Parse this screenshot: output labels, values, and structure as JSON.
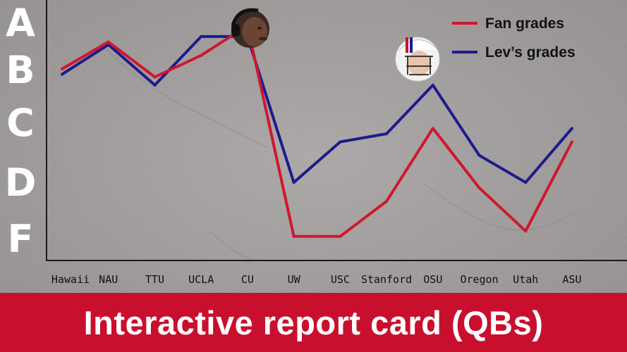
{
  "banner": {
    "title": "Interactive report card (QBs)"
  },
  "colors": {
    "fan": "#d0172f",
    "lev": "#1f1a8c",
    "banner": "#c8102e"
  },
  "icons": [
    "headphones-player-avatar",
    "helmet-player-avatar"
  ],
  "chart_data": {
    "type": "line",
    "title": "",
    "xlabel": "",
    "ylabel": "",
    "categories": [
      "Hawaii",
      "NAU",
      "TTU",
      "UCLA",
      "CU",
      "UW",
      "USC",
      "Stanford",
      "OSU",
      "Oregon",
      "Utah",
      "ASU"
    ],
    "y_grades": [
      "A",
      "B",
      "C",
      "D",
      "F"
    ],
    "y_grade_values": [
      4,
      3,
      2,
      1,
      0
    ],
    "ylim": [
      0,
      4
    ],
    "series": [
      {
        "name": "Fan grades",
        "values": [
          3.05,
          3.55,
          2.9,
          3.3,
          3.85,
          -0.05,
          -0.05,
          0.6,
          1.95,
          0.85,
          0.05,
          1.7
        ]
      },
      {
        "name": "Lev’s grades",
        "values": [
          2.95,
          3.5,
          2.75,
          3.65,
          3.65,
          0.95,
          1.7,
          1.85,
          2.75,
          1.45,
          0.95,
          1.95
        ]
      }
    ],
    "legend_position": "top-right",
    "grid": false
  }
}
